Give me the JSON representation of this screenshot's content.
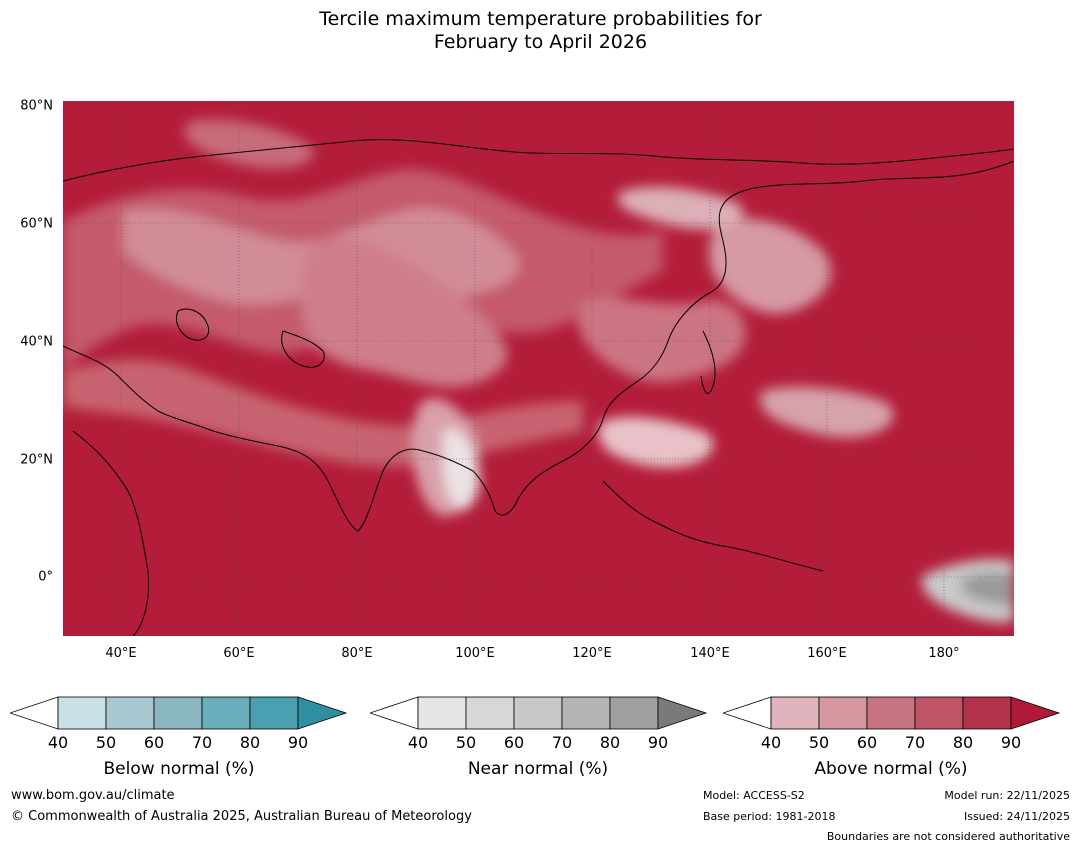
{
  "title_line1": "Tercile maximum temperature probabilities for",
  "title_line2": "February to April 2026",
  "map": {
    "lat_labels": [
      "80°N",
      "60°N",
      "40°N",
      "20°N",
      "0°"
    ],
    "lon_labels": [
      "40°E",
      "60°E",
      "80°E",
      "100°E",
      "120°E",
      "140°E",
      "160°E",
      "180°"
    ],
    "background_color": "#b31d3a"
  },
  "colorbars": [
    {
      "label": "Below normal (%)",
      "ticks": [
        "40",
        "50",
        "60",
        "70",
        "80",
        "90"
      ],
      "colors": [
        "#ffffff",
        "#c8e0e7",
        "#a8c7ce",
        "#89b6c1",
        "#6aaebb",
        "#4aa0b0",
        "#2f8ea0"
      ]
    },
    {
      "label": "Near normal (%)",
      "ticks": [
        "40",
        "50",
        "60",
        "70",
        "80",
        "90"
      ],
      "colors": [
        "#ffffff",
        "#e6e6e6",
        "#d7d7d7",
        "#c8c8c8",
        "#b4b4b4",
        "#a0a0a0",
        "#7a7a7a"
      ]
    },
    {
      "label": "Above normal (%)",
      "ticks": [
        "40",
        "50",
        "60",
        "70",
        "80",
        "90"
      ],
      "colors": [
        "#ffffff",
        "#e0b4bc",
        "#d4969f",
        "#c87480",
        "#bd5566",
        "#b3334c",
        "#b01a38"
      ]
    }
  ],
  "footer": {
    "website": "www.bom.gov.au/climate",
    "copyright": "© Commonwealth of Australia 2025, Australian Bureau of Meteorology",
    "model": "Model: ACCESS-S2",
    "base_period": "Base period: 1981-2018",
    "model_run": "Model run: 22/11/2025",
    "issued": "Issued: 24/11/2025",
    "disclaimer": "Boundaries are not considered authoritative"
  }
}
